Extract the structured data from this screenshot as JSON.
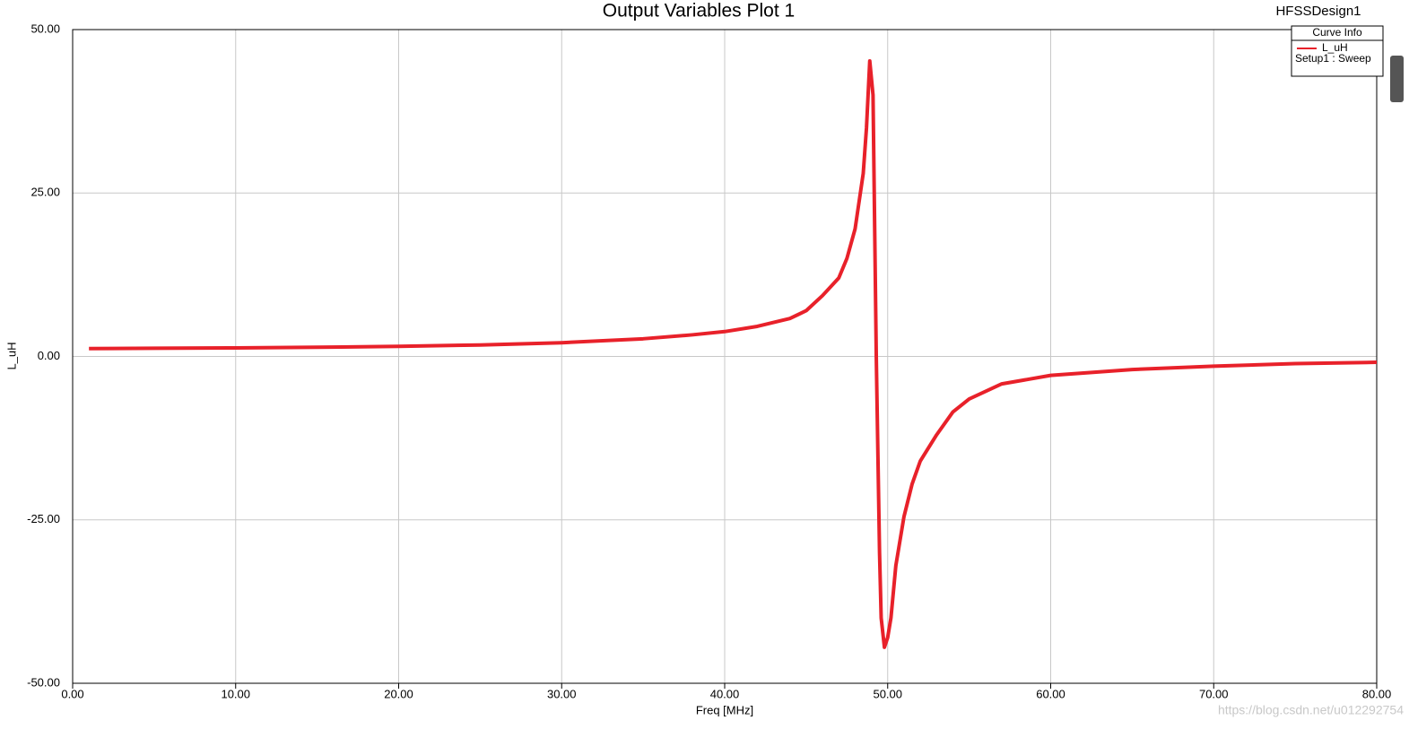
{
  "chart_data": {
    "type": "line",
    "title": "Output Variables Plot 1",
    "design_name": "HFSSDesign1",
    "x_label": "Freq [MHz]",
    "y_label": "L_uH",
    "legend_title": "Curve Info",
    "watermark": "https://blog.csdn.net/u012292754",
    "x": [
      1,
      5,
      10,
      15,
      20,
      25,
      30,
      35,
      38,
      40,
      42,
      44,
      45,
      46,
      47,
      47.5,
      48,
      48.5,
      48.7,
      48.9,
      49.1,
      49.2,
      49.3,
      49.4,
      49.5,
      49.6,
      49.8,
      50,
      50.2,
      50.5,
      51,
      51.5,
      52,
      53,
      54,
      55,
      57,
      60,
      65,
      70,
      75,
      80
    ],
    "series": [
      {
        "name": "L_uH",
        "source": "Setup1 : Sweep",
        "color": "#e8212a",
        "values": [
          1.2,
          1.25,
          1.3,
          1.4,
          1.55,
          1.75,
          2.1,
          2.7,
          3.3,
          3.8,
          4.6,
          5.8,
          7,
          9.3,
          12,
          15,
          19.5,
          28,
          35,
          45.2,
          40,
          20,
          0,
          -15,
          -30,
          -40,
          -44.5,
          -43,
          -40,
          -32,
          -24.5,
          -19.5,
          -16,
          -12,
          -8.5,
          -6.5,
          -4.2,
          -2.9,
          -2,
          -1.5,
          -1.1,
          -0.9
        ]
      }
    ],
    "xlim": [
      0,
      80
    ],
    "ylim": [
      -50,
      50
    ],
    "xticks": [
      {
        "value": 0,
        "label": "0.00"
      },
      {
        "value": 10,
        "label": "10.00"
      },
      {
        "value": 20,
        "label": "20.00"
      },
      {
        "value": 30,
        "label": "30.00"
      },
      {
        "value": 40,
        "label": "40.00"
      },
      {
        "value": 50,
        "label": "50.00"
      },
      {
        "value": 60,
        "label": "60.00"
      },
      {
        "value": 70,
        "label": "70.00"
      },
      {
        "value": 80,
        "label": "80.00"
      }
    ],
    "yticks": [
      {
        "value": -50,
        "label": "-50.00"
      },
      {
        "value": -25,
        "label": "-25.00"
      },
      {
        "value": 0,
        "label": "0.00"
      },
      {
        "value": 25,
        "label": "25.00"
      },
      {
        "value": 50,
        "label": "50.00"
      }
    ],
    "grid": true
  }
}
